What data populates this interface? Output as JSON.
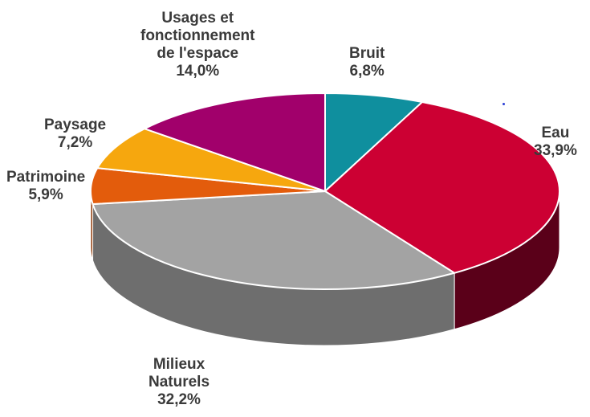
{
  "chart_data": {
    "type": "pie",
    "style": "3d",
    "slices": [
      {
        "label": "Bruit",
        "value": 6.8,
        "value_text": "6,8%",
        "color": "#0f8f9e",
        "side_color": "#0a5f69"
      },
      {
        "label": "Eau",
        "value": 33.9,
        "value_text": "33,9%",
        "color": "#cc0033",
        "side_color": "#5a0019"
      },
      {
        "label": "Milieux Naturels",
        "value": 32.2,
        "value_text": "32,2%",
        "color": "#a3a3a3",
        "side_color": "#6e6e6e"
      },
      {
        "label": "Patrimoine",
        "value": 5.9,
        "value_text": "5,9%",
        "color": "#e35c0c",
        "side_color": "#8f3a08"
      },
      {
        "label": "Paysage",
        "value": 7.2,
        "value_text": "7,2%",
        "color": "#f6a70e",
        "side_color": "#a06c08"
      },
      {
        "label": "Usages et fonctionnement de l'espace",
        "value": 14.0,
        "value_text": "14,0%",
        "color": "#a1006b",
        "side_color": "#5c003d"
      }
    ]
  },
  "labels": {
    "bruit": {
      "lines": [
        "Bruit"
      ],
      "pct": "6,8%"
    },
    "eau": {
      "lines": [
        "Eau"
      ],
      "pct": "33,9%"
    },
    "milieux": {
      "lines": [
        "Milieux",
        "Naturels"
      ],
      "pct": "32,2%"
    },
    "patrimoine": {
      "lines": [
        "Patrimoine"
      ],
      "pct": "5,9%"
    },
    "paysage": {
      "lines": [
        "Paysage"
      ],
      "pct": "7,2%"
    },
    "usages": {
      "lines": [
        "Usages et",
        "fonctionnement",
        "de l'espace"
      ],
      "pct": "14,0%"
    }
  }
}
